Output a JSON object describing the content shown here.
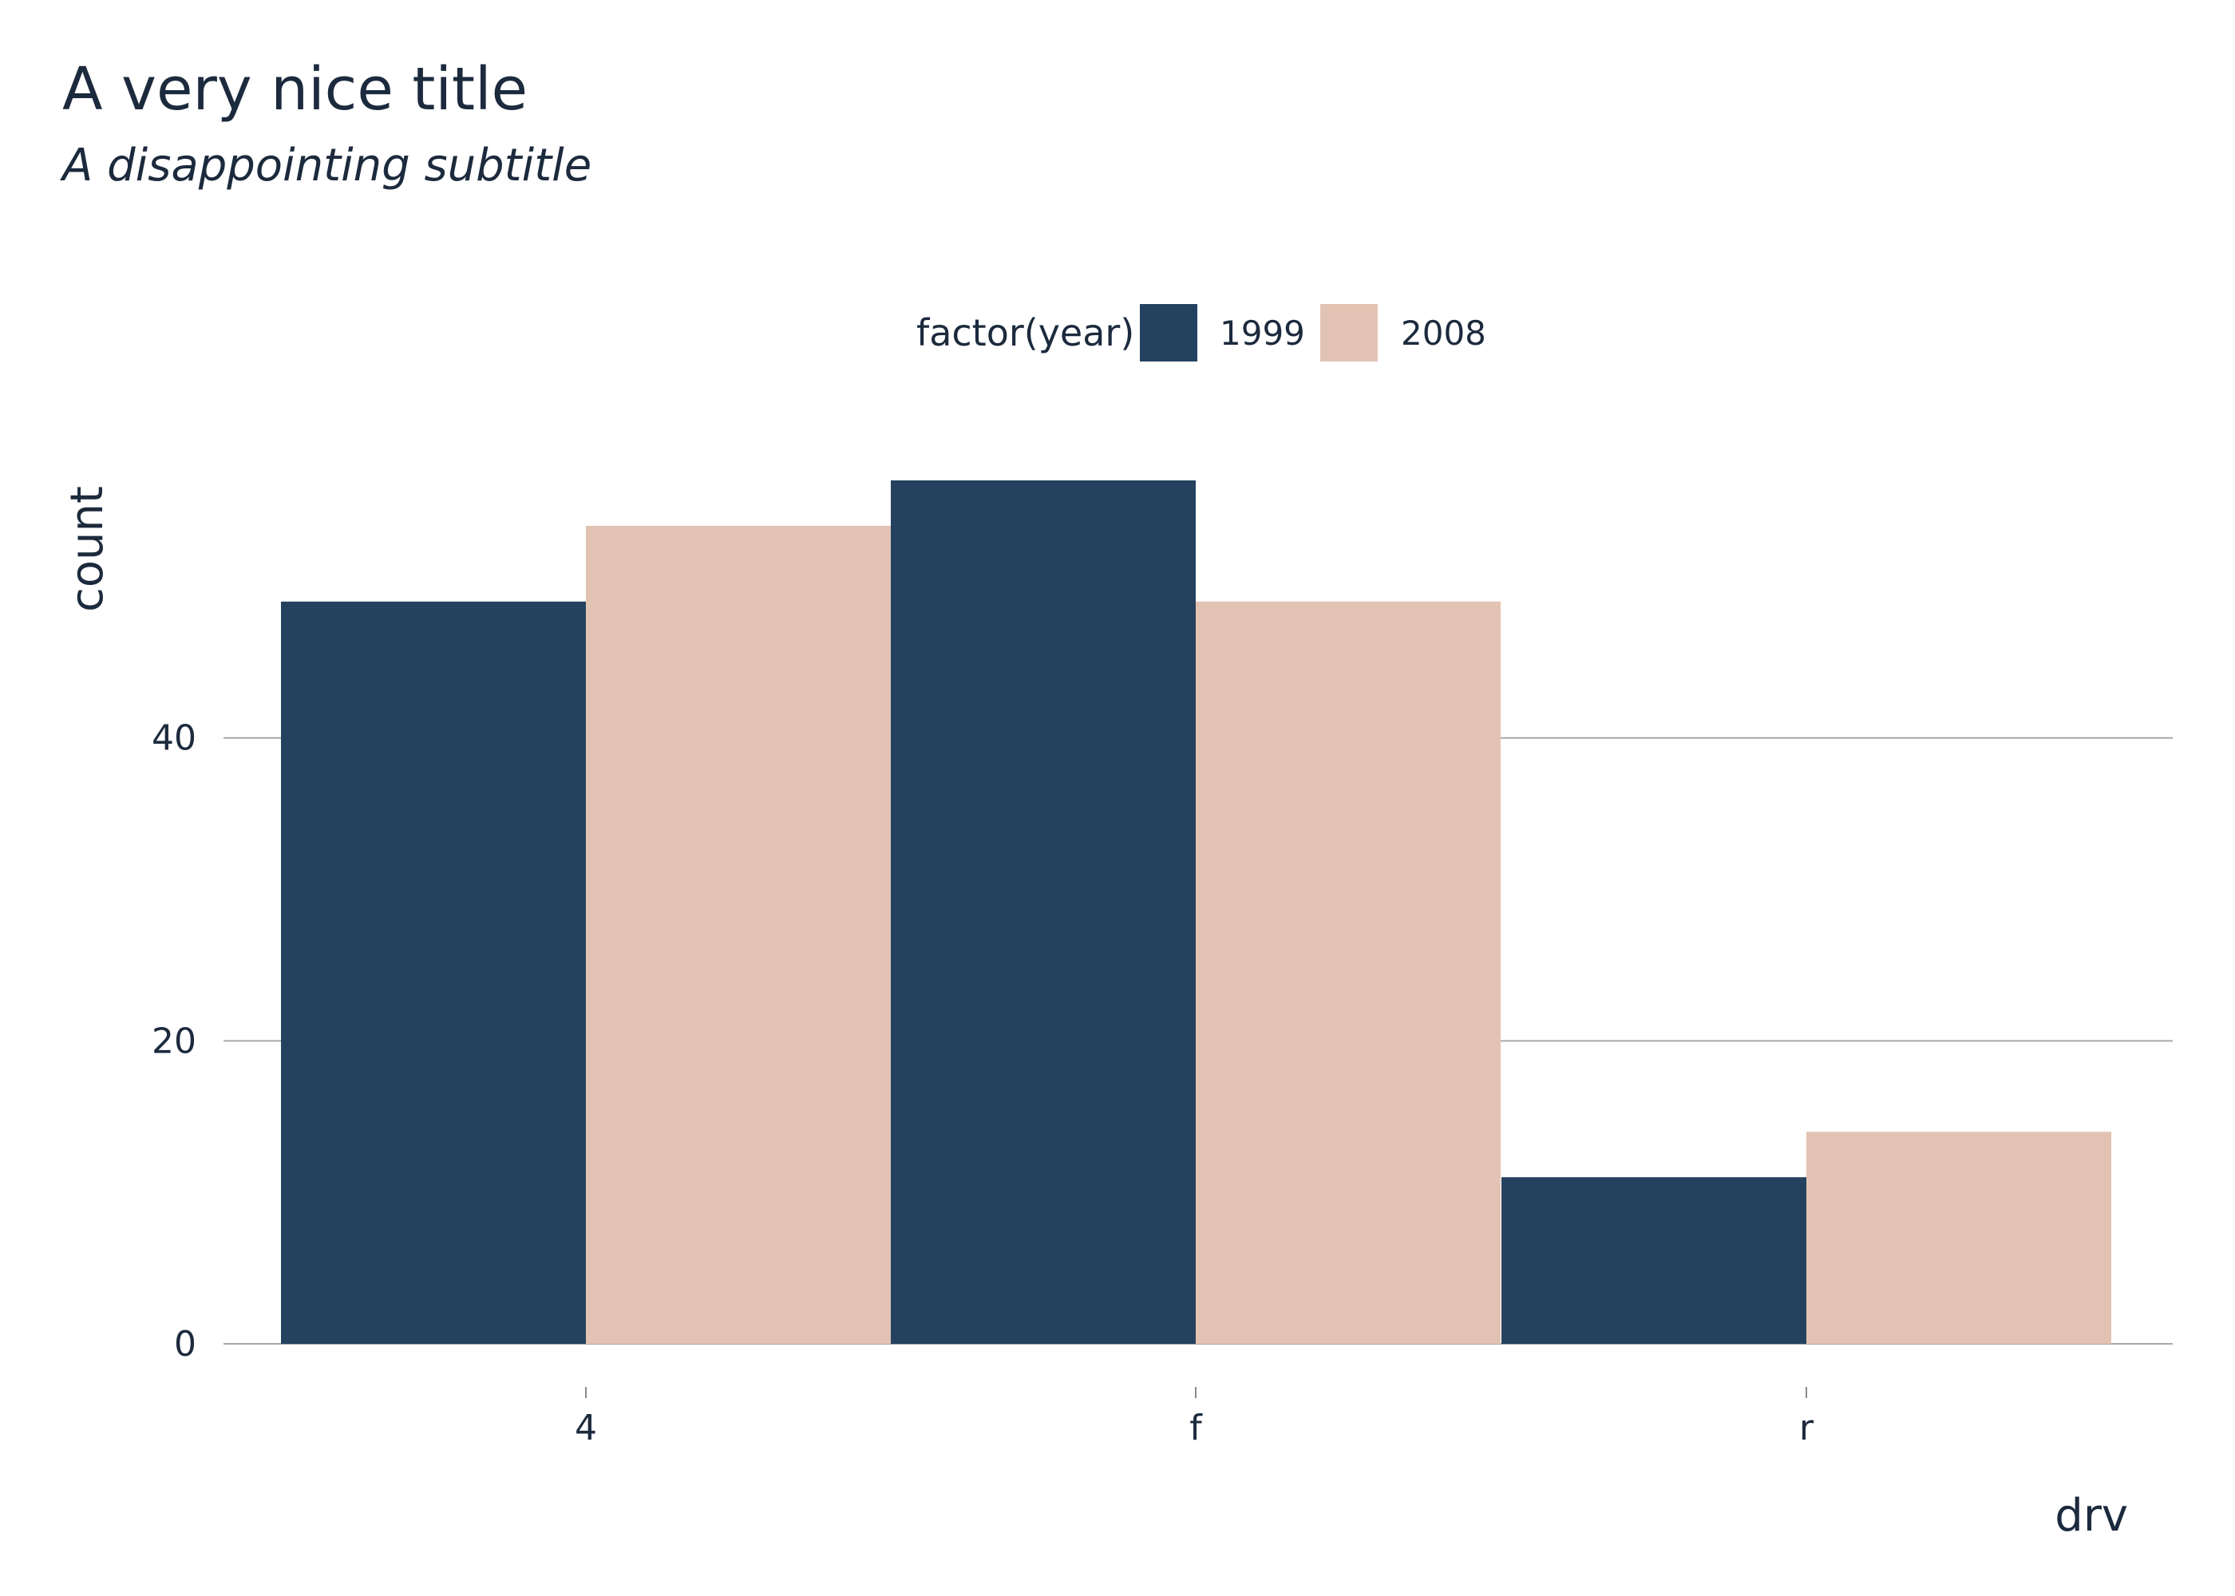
{
  "chart_data": {
    "type": "bar",
    "title": "A very nice title",
    "subtitle": "A disappointing subtitle",
    "xlabel": "drv",
    "ylabel": "count",
    "categories": [
      "4",
      "f",
      "r"
    ],
    "series": [
      {
        "name": "1999",
        "values": [
          49,
          57,
          11
        ],
        "color": "#24425f"
      },
      {
        "name": "2008",
        "values": [
          54,
          49,
          14
        ],
        "color": "#e2c3b3"
      }
    ],
    "legend": {
      "title": "factor(year)",
      "position": "top"
    },
    "y_ticks": [
      0,
      20,
      40
    ],
    "ylim": [
      0,
      57
    ],
    "grid": {
      "major_y": true,
      "major_x": false
    }
  }
}
